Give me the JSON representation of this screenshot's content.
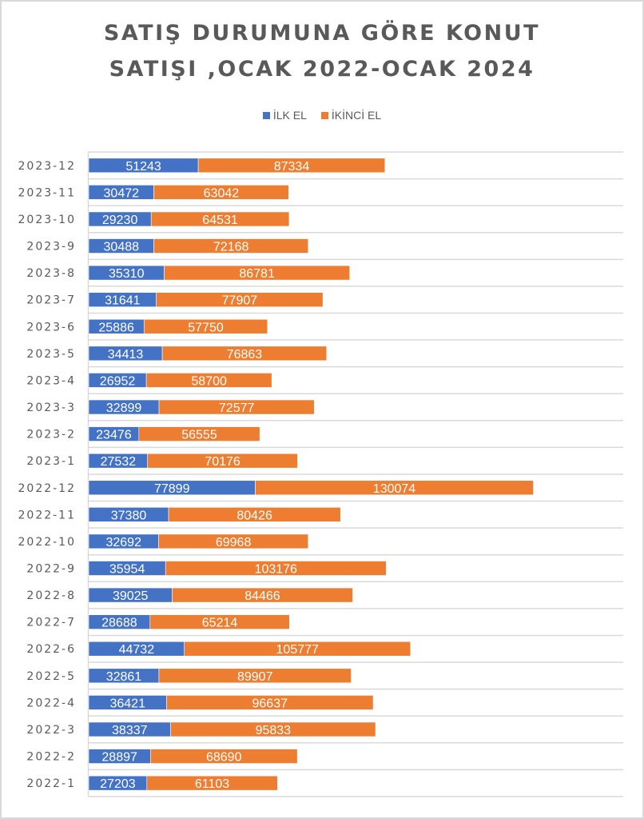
{
  "chart_data": {
    "type": "bar",
    "orientation": "horizontal",
    "stacked": true,
    "title_lines": [
      "SATIŞ DURUMUNA GÖRE KONUT",
      "SATIŞI ,OCAK 2022-OCAK 2024"
    ],
    "xlabel": "",
    "ylabel": "",
    "xlim": [
      0,
      250000
    ],
    "grid": true,
    "legend_position": "top",
    "categories": [
      "2023-12",
      "2023-11",
      "2023-10",
      "2023-9",
      "2023-8",
      "2023-7",
      "2023-6",
      "2023-5",
      "2023-4",
      "2023-3",
      "2023-2",
      "2023-1",
      "2022-12",
      "2022-11",
      "2022-10",
      "2022-9",
      "2022-8",
      "2022-7",
      "2022-6",
      "2022-5",
      "2022-4",
      "2022-3",
      "2022-2",
      "2022-1"
    ],
    "series": [
      {
        "name": "İLK EL",
        "color": "#4472c4",
        "values": [
          51243,
          30472,
          29230,
          30488,
          35310,
          31641,
          25886,
          34413,
          26952,
          32899,
          23476,
          27532,
          77899,
          37380,
          32692,
          35954,
          39025,
          28688,
          44732,
          32861,
          36421,
          38337,
          28897,
          27203
        ]
      },
      {
        "name": "İKİNCİ EL",
        "color": "#ed7d31",
        "values": [
          87334,
          63042,
          64531,
          72168,
          86781,
          77907,
          57750,
          76863,
          58700,
          72577,
          56555,
          70176,
          130074,
          80426,
          69968,
          103176,
          84466,
          65214,
          105777,
          89907,
          96637,
          95833,
          68690,
          61103
        ]
      }
    ]
  }
}
